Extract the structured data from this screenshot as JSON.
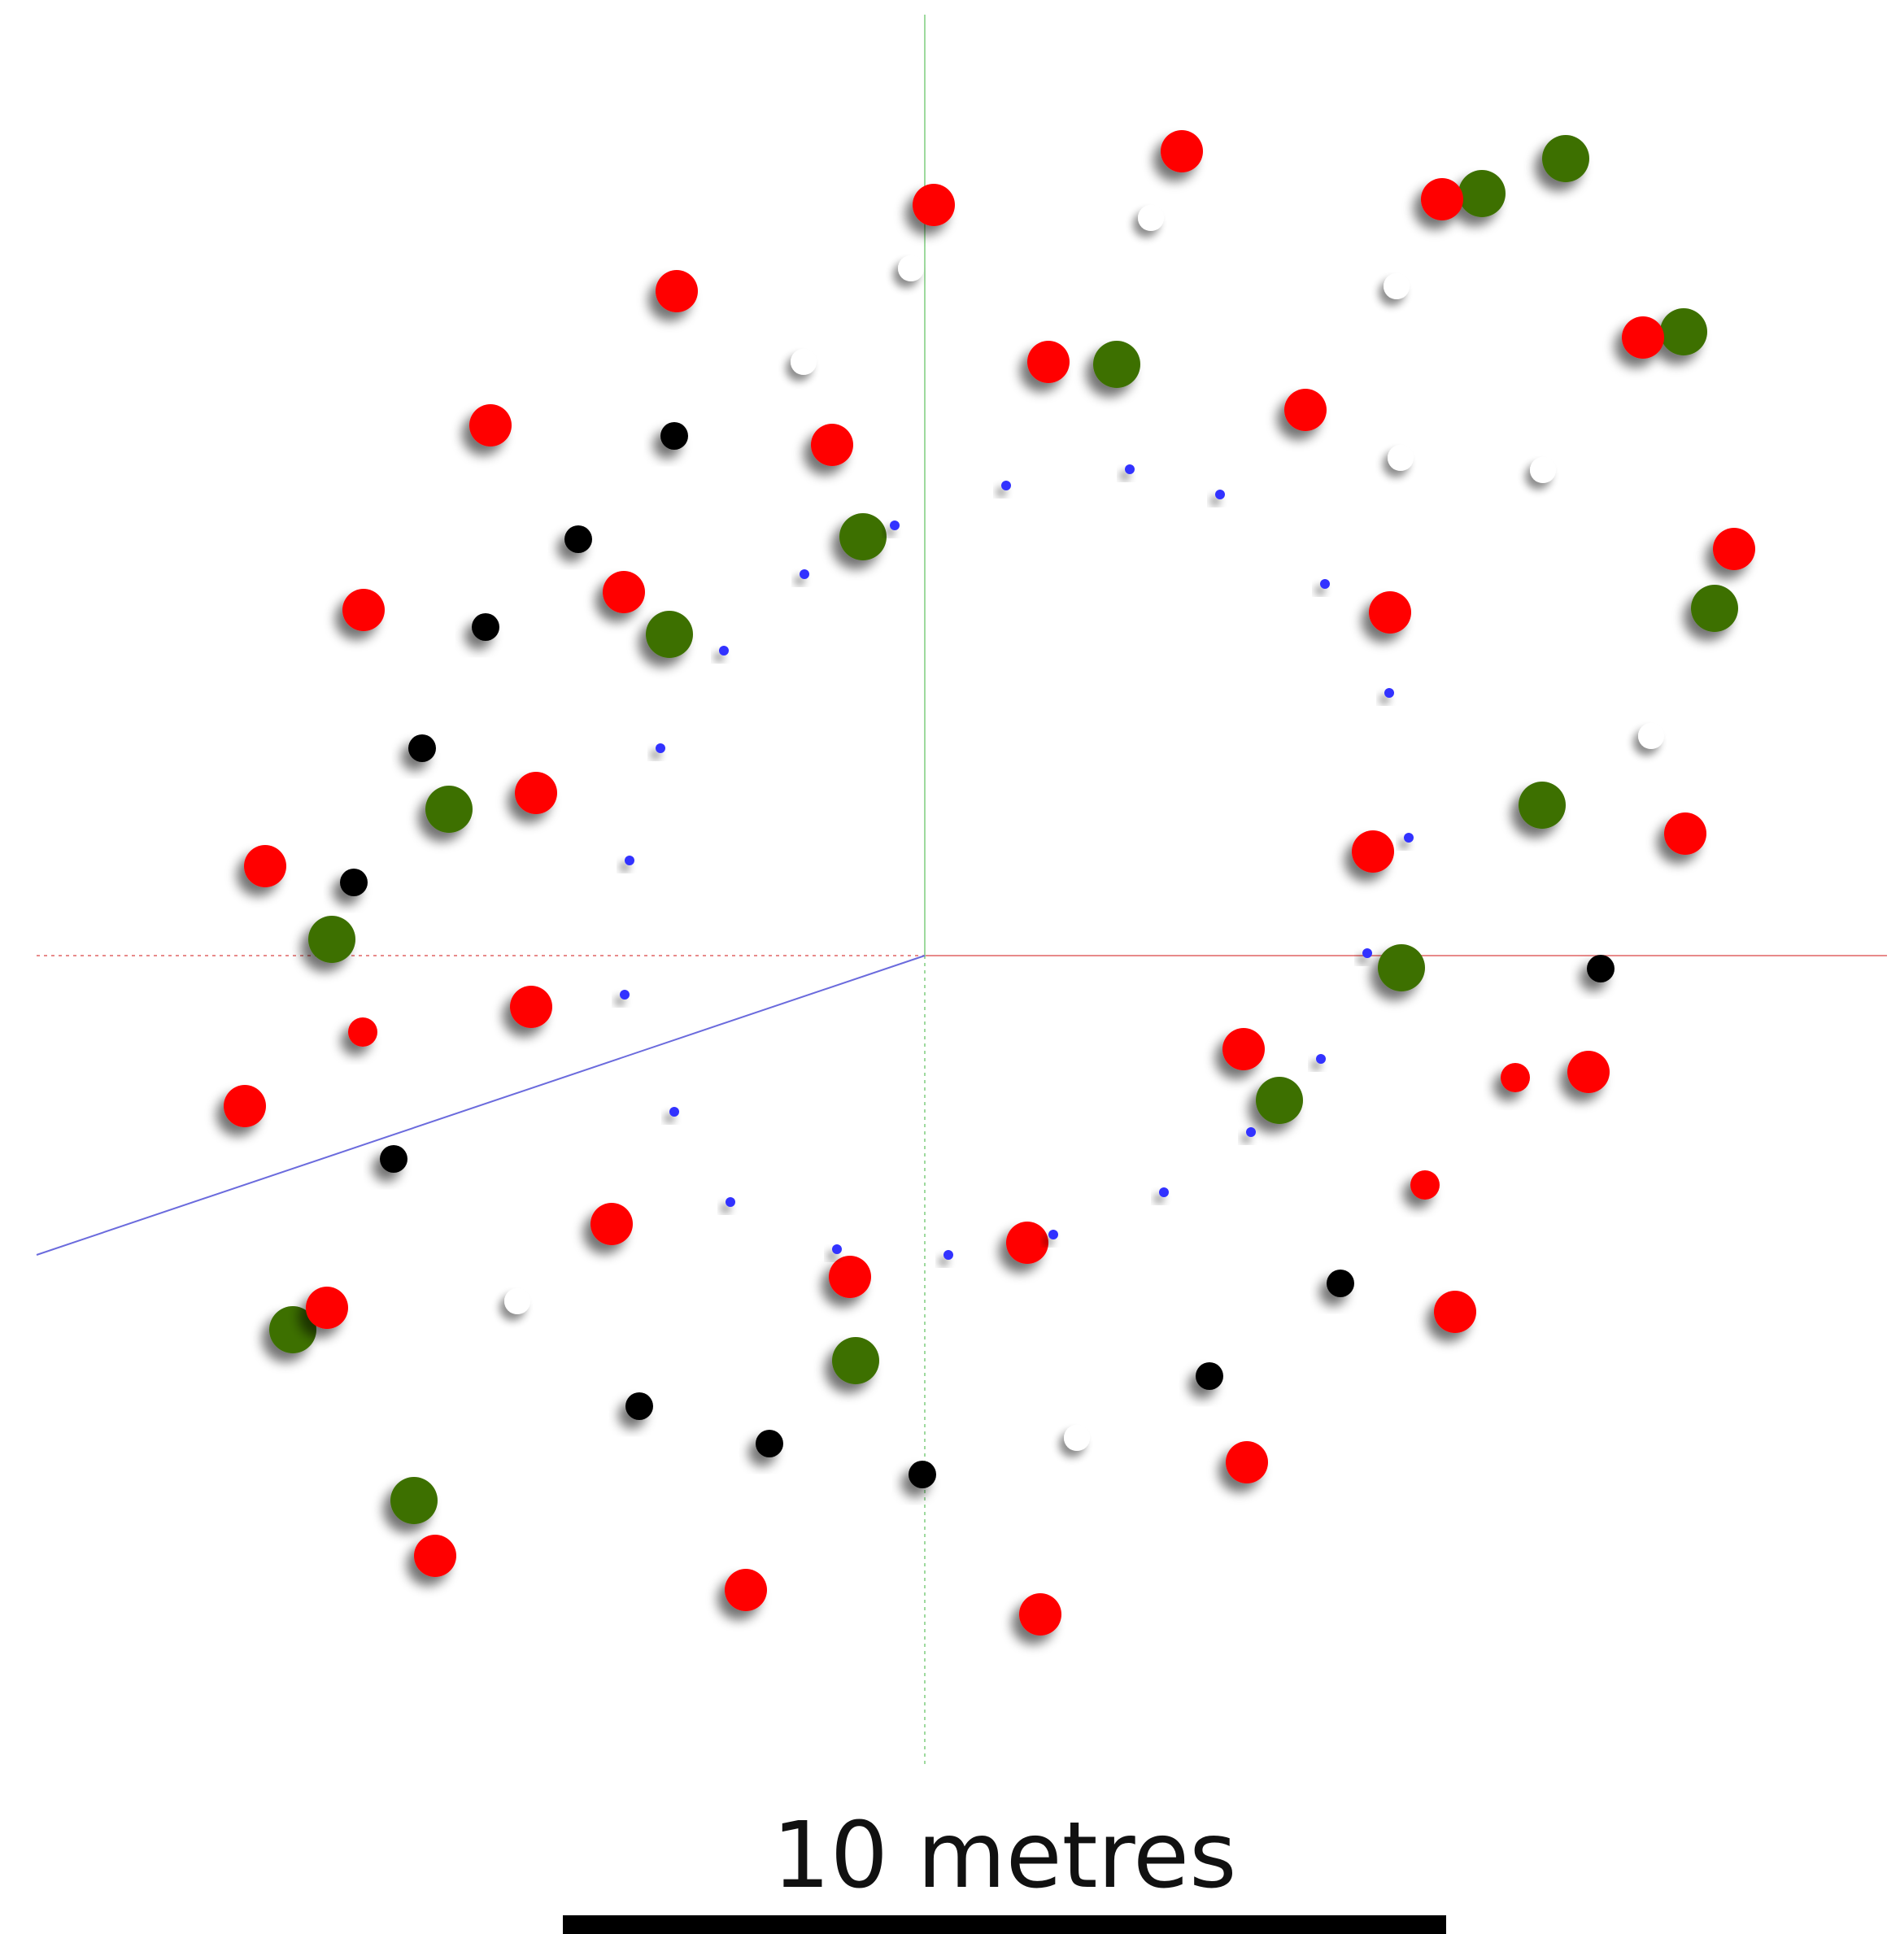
{
  "scale": {
    "label": "10 metres"
  },
  "colors": {
    "red_atom": "#ff0000",
    "green_atom": "#3d7000",
    "black_atom": "#000000",
    "white_atom": "#ffffff",
    "blue_atom": "#3333ff",
    "x_axis": "#e88a8a",
    "y_axis": "#9ed99e",
    "z_axis": "#6b6bdd"
  },
  "atom_types": [
    "red-sphere",
    "green-sphere",
    "black-sphere",
    "white-sphere",
    "blue-sphere"
  ]
}
